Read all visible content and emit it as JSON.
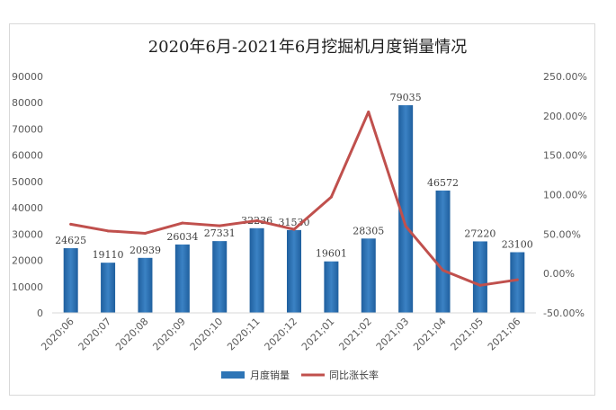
{
  "chart_data": {
    "type": "bar",
    "title": "2020年6月-2021年6月挖掘机月度销量情况",
    "categories": [
      "2020;06",
      "2020;07",
      "2020;08",
      "2020;09",
      "2020;10",
      "2020;11",
      "2020;12",
      "2021;01",
      "2021;02",
      "2021;03",
      "2021;04",
      "2021;05",
      "2021;06"
    ],
    "series": [
      {
        "name": "月度销量",
        "type": "bar",
        "axis": "left",
        "color": "#2e75b6",
        "values": [
          24625,
          19110,
          20939,
          26034,
          27331,
          32236,
          31530,
          19601,
          28305,
          79035,
          46572,
          27220,
          23100
        ]
      },
      {
        "name": "同比涨长率",
        "type": "line",
        "axis": "right",
        "color": "#c0504d",
        "values": [
          62.5,
          54.0,
          51.0,
          64.0,
          60.5,
          67.0,
          56.0,
          97.0,
          205.0,
          60.0,
          4.0,
          -15.0,
          -8.0
        ]
      }
    ],
    "y_left": {
      "min": 0,
      "max": 90000,
      "ticks": [
        "0",
        "10000",
        "20000",
        "30000",
        "40000",
        "50000",
        "60000",
        "70000",
        "80000",
        "90000"
      ]
    },
    "y_right": {
      "min": -50,
      "max": 250,
      "ticks": [
        "-50.00%",
        "0.00%",
        "50.00%",
        "100.00%",
        "150.00%",
        "200.00%",
        "250.00%"
      ]
    },
    "legend_position": "bottom",
    "grid": false
  }
}
